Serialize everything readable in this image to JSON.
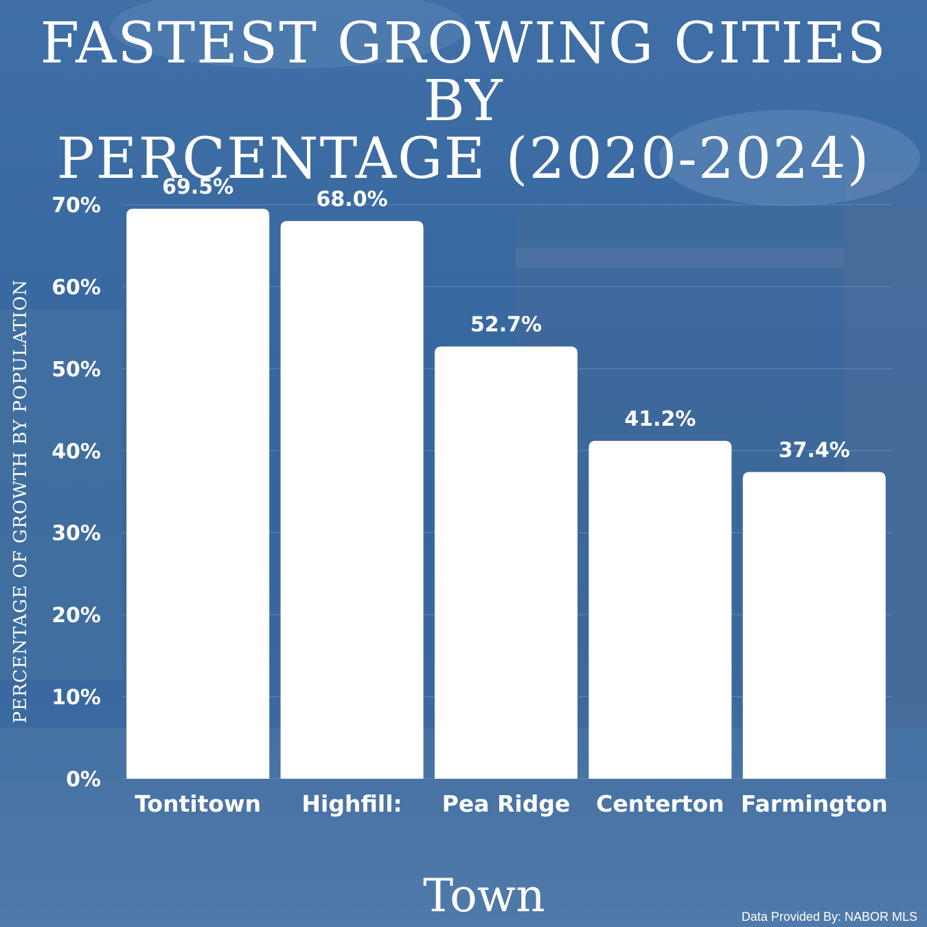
{
  "title_lines": [
    "FASTEST GROWING CITIES BY",
    "PERCENTAGE (2020-2024)"
  ],
  "credit": "Data Provided By: NABOR MLS",
  "colors": {
    "background": "#3a6aa2",
    "bars": "#ffffff",
    "text": "#ffffff",
    "grid": "#7d9fc6"
  },
  "chart_data": {
    "type": "bar",
    "categories": [
      "Tontitown",
      "Highfill:",
      "Pea Ridge",
      "Centerton",
      "Farmington"
    ],
    "values": [
      69.5,
      68.0,
      52.7,
      41.2,
      37.4
    ],
    "data_labels": [
      "69.5%",
      "68.0%",
      "52.7%",
      "41.2%",
      "37.4%"
    ],
    "xlabel": "Town",
    "ylabel": "PERCENTAGE OF GROWTH BY POPULATION",
    "ylim": [
      0,
      70
    ],
    "yticks": [
      0,
      10,
      20,
      30,
      40,
      50,
      60,
      70
    ],
    "ytick_labels": [
      "0%",
      "10%",
      "20%",
      "30%",
      "40%",
      "50%",
      "60%",
      "70%"
    ],
    "grid": true,
    "legend": "none"
  }
}
